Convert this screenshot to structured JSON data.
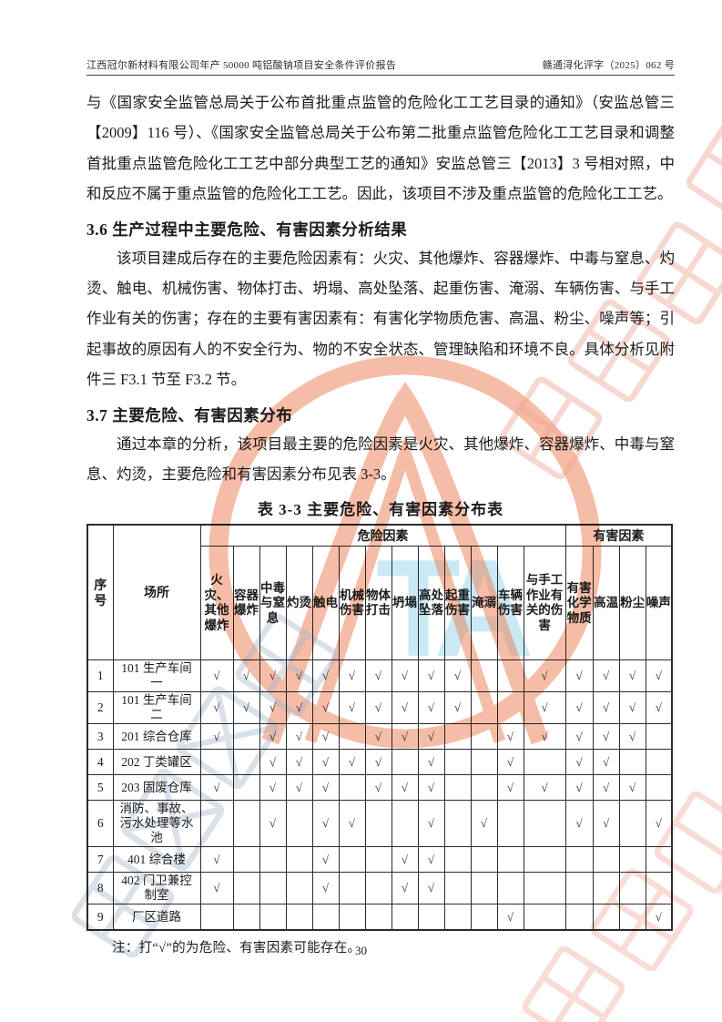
{
  "header": {
    "left": "江西冠尔新材料有限公司年产 50000 吨铝酸钠项目安全条件评价报告",
    "right": "赣通浔化评字（2025）062 号"
  },
  "content": {
    "paragraph_intro": "与《国家安全监管总局关于公布首批重点监管的危险化工工艺目录的通知》（安监总管三【2009】116 号）、《国家安全监管总局关于公布第二批重点监管危险化工工艺目录和调整首批重点监管危险化工工艺中部分典型工艺的通知》安监总管三【2013】3 号相对照，中和反应不属于重点监管的危险化工工艺。因此，该项目不涉及重点监管的危险化工工艺。",
    "section_36_heading": "3.6 生产过程中主要危险、有害因素分析结果",
    "section_36_body": "该项目建成后存在的主要危险因素有：火灾、其他爆炸、容器爆炸、中毒与窒息、灼烫、触电、机械伤害、物体打击、坍塌、高处坠落、起重伤害、淹溺、车辆伤害、与手工作业有关的伤害；存在的主要有害因素有：有害化学物质危害、高温、粉尘、噪声等；引起事故的原因有人的不安全行为、物的不安全状态、管理缺陷和环境不良。具体分析见附件三 F3.1 节至 F3.2 节。",
    "section_37_heading": "3.7 主要危险、有害因素分布",
    "section_37_body": "通过本章的分析，该项目最主要的危险因素是火灾、其他爆炸、容器爆炸、中毒与窒息、灼烫，主要危险和有害因素分布见表 3-3。",
    "table_title": "表 3-3 主要危险、有害因素分布表",
    "note": "注：打“√”的为危险、有害因素可能存在。",
    "page_number": "30"
  },
  "table": {
    "col_no": "序号",
    "col_place": "场所",
    "group_danger": "危险因素",
    "group_harm": "有害因素",
    "danger_columns": [
      "火灾、其他爆炸",
      "容器爆炸",
      "中毒与窒息",
      "灼烫",
      "触电",
      "机械伤害",
      "物体打击",
      "坍塌",
      "高处坠落",
      "起重伤害",
      "淹溺",
      "车辆伤害",
      "与手工作业有关的伤害"
    ],
    "harm_columns": [
      "有害化学物质",
      "高温",
      "粉尘",
      "噪声"
    ],
    "check_symbol": "√",
    "rows": [
      {
        "no": "1",
        "place": "101 生产车间一",
        "checks": [
          1,
          1,
          1,
          1,
          1,
          1,
          1,
          1,
          1,
          1,
          0,
          0,
          1,
          1,
          1,
          1,
          1
        ]
      },
      {
        "no": "2",
        "place": "101 生产车间二",
        "checks": [
          1,
          1,
          1,
          1,
          1,
          1,
          1,
          1,
          1,
          1,
          0,
          0,
          1,
          1,
          1,
          1,
          1
        ]
      },
      {
        "no": "3",
        "place": "201 综合仓库",
        "checks": [
          1,
          0,
          1,
          1,
          1,
          0,
          1,
          1,
          1,
          0,
          0,
          1,
          1,
          1,
          1,
          1,
          0
        ]
      },
      {
        "no": "4",
        "place": "202 丁类罐区",
        "checks": [
          0,
          0,
          1,
          1,
          1,
          1,
          1,
          0,
          1,
          0,
          0,
          1,
          0,
          1,
          1,
          0,
          0
        ]
      },
      {
        "no": "5",
        "place": "203 固废仓库",
        "checks": [
          1,
          0,
          1,
          1,
          1,
          0,
          1,
          1,
          1,
          0,
          0,
          1,
          1,
          1,
          1,
          1,
          0
        ]
      },
      {
        "no": "6",
        "place": "消防、事故、污水处理等水池",
        "checks": [
          0,
          0,
          1,
          0,
          1,
          1,
          0,
          0,
          1,
          0,
          1,
          0,
          0,
          1,
          1,
          0,
          1
        ]
      },
      {
        "no": "7",
        "place": "401 综合楼",
        "checks": [
          1,
          0,
          0,
          0,
          1,
          0,
          0,
          1,
          1,
          0,
          0,
          0,
          0,
          0,
          0,
          0,
          0
        ]
      },
      {
        "no": "8",
        "place": "402 门卫兼控制室",
        "checks": [
          1,
          0,
          0,
          0,
          1,
          0,
          0,
          1,
          1,
          0,
          0,
          0,
          0,
          0,
          0,
          0,
          0
        ]
      },
      {
        "no": "9",
        "place": "厂区道路",
        "checks": [
          0,
          0,
          0,
          0,
          0,
          0,
          0,
          0,
          0,
          0,
          0,
          1,
          0,
          0,
          0,
          0,
          1
        ]
      }
    ]
  },
  "watermark": {
    "emblem_color": "#ec7c50",
    "glyph_color_warm": "#eda392",
    "glyph_color_cool": "#9fb0c6",
    "monogram": "TA",
    "monogram_color": "#9ed7ec"
  }
}
